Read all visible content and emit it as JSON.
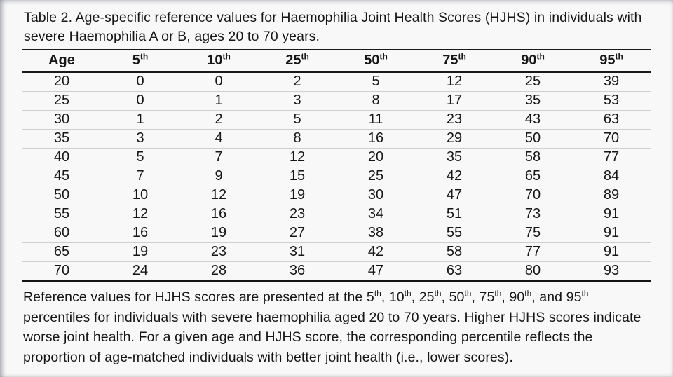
{
  "page": {
    "background": "#f8f8f9",
    "text_color": "#161616",
    "rule_color": "#1a1a1a",
    "row_divider_color": "#ccd0d4"
  },
  "table": {
    "caption": "Table 2. Age-specific reference values for Haemophilia Joint Health Scores (HJHS) in individuals with severe Haemophilia A or B, ages 20 to 70 years.",
    "columns": [
      {
        "label": "Age",
        "sup": ""
      },
      {
        "label": "5",
        "sup": "th"
      },
      {
        "label": "10",
        "sup": "th"
      },
      {
        "label": "25",
        "sup": "th"
      },
      {
        "label": "50",
        "sup": "th"
      },
      {
        "label": "75",
        "sup": "th"
      },
      {
        "label": "90",
        "sup": "th"
      },
      {
        "label": "95",
        "sup": "th"
      }
    ],
    "rows": [
      [
        "20",
        "0",
        "0",
        "2",
        "5",
        "12",
        "25",
        "39"
      ],
      [
        "25",
        "0",
        "1",
        "3",
        "8",
        "17",
        "35",
        "53"
      ],
      [
        "30",
        "1",
        "2",
        "5",
        "11",
        "23",
        "43",
        "63"
      ],
      [
        "35",
        "3",
        "4",
        "8",
        "16",
        "29",
        "50",
        "70"
      ],
      [
        "40",
        "5",
        "7",
        "12",
        "20",
        "35",
        "58",
        "77"
      ],
      [
        "45",
        "7",
        "9",
        "15",
        "25",
        "42",
        "65",
        "84"
      ],
      [
        "50",
        "10",
        "12",
        "19",
        "30",
        "47",
        "70",
        "89"
      ],
      [
        "55",
        "12",
        "16",
        "23",
        "34",
        "51",
        "73",
        "91"
      ],
      [
        "60",
        "16",
        "19",
        "27",
        "38",
        "55",
        "75",
        "91"
      ],
      [
        "65",
        "19",
        "23",
        "31",
        "42",
        "58",
        "77",
        "91"
      ],
      [
        "70",
        "24",
        "28",
        "36",
        "47",
        "63",
        "80",
        "93"
      ]
    ]
  },
  "footnote": {
    "segments": [
      {
        "t": "Reference values for HJHS scores are presented at the 5"
      },
      {
        "s": "th"
      },
      {
        "t": ", 10"
      },
      {
        "s": "th"
      },
      {
        "t": ", 25"
      },
      {
        "s": "th"
      },
      {
        "t": ", 50"
      },
      {
        "s": "th"
      },
      {
        "t": ", 75"
      },
      {
        "s": "th"
      },
      {
        "t": ", 90"
      },
      {
        "s": "th"
      },
      {
        "t": ", and 95"
      },
      {
        "s": "th"
      },
      {
        "t": " percentiles for individuals with severe haemophilia aged 20 to 70 years. Higher HJHS scores indicate worse joint health. For a given age and HJHS score, the corresponding percentile reflects the proportion of age-matched individuals with better joint health (i.e., lower scores)."
      }
    ]
  }
}
